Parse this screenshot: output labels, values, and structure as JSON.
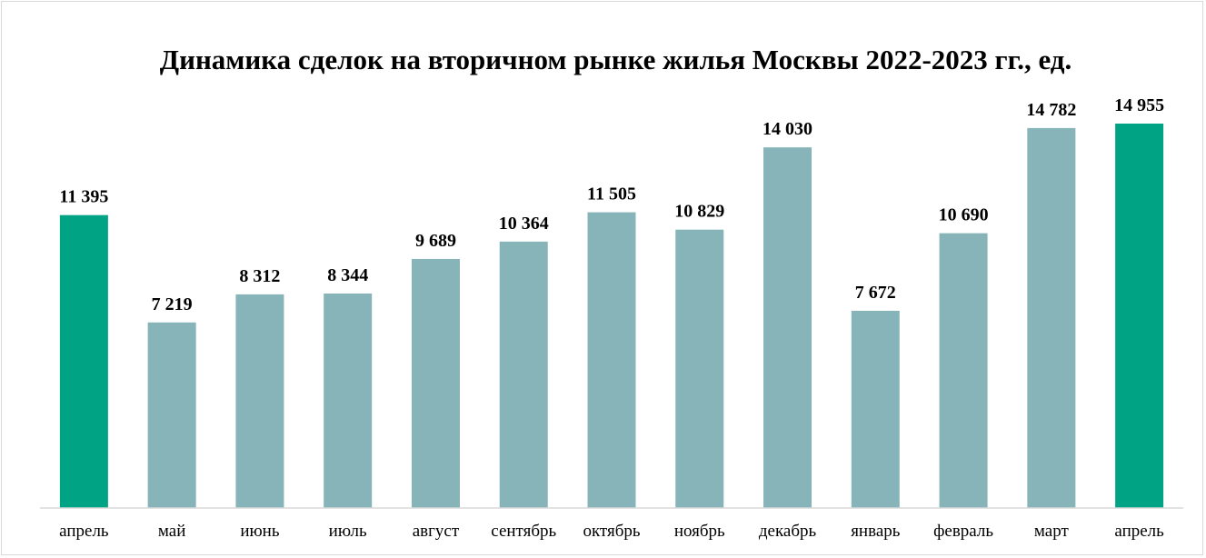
{
  "chart_data": {
    "type": "bar",
    "title": "Динамика сделок на вторичном рынке жилья Москвы 2022-2023 гг., ед.",
    "xlabel": "",
    "ylabel": "",
    "categories": [
      "апрель",
      "май",
      "июнь",
      "июль",
      "август",
      "сентябрь",
      "октябрь",
      "ноябрь",
      "декабрь",
      "январь",
      "февраль",
      "март",
      "апрель"
    ],
    "values": [
      11395,
      7219,
      8312,
      8344,
      9689,
      10364,
      11505,
      10829,
      14030,
      7672,
      10690,
      14782,
      14955
    ],
    "value_labels": [
      "11 395",
      "7 219",
      "8 312",
      "8 344",
      "9 689",
      "10 364",
      "11 505",
      "10 829",
      "14 030",
      "7 672",
      "10 690",
      "14 782",
      "14 955"
    ],
    "highlighted": [
      0,
      12
    ],
    "ylim": [
      0,
      16000
    ],
    "grid": false,
    "legend": "none",
    "colors": {
      "bar": "#86b4b8",
      "highlight": "#00a484",
      "axis": "#d9d9d9",
      "text": "#000000"
    }
  }
}
